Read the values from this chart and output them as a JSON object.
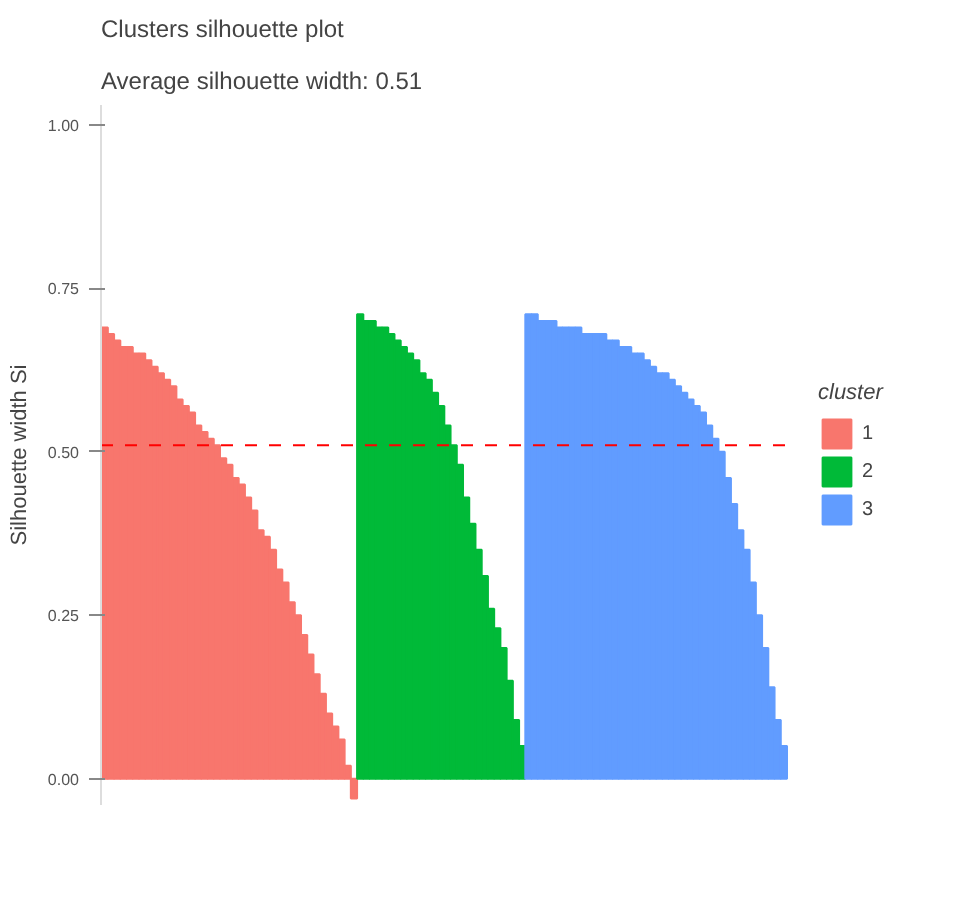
{
  "chart_data": {
    "type": "bar",
    "title": "Clusters silhouette plot",
    "subtitle": " Average silhouette width: 0.51",
    "ylabel": "Silhouette width Si",
    "legend_title": "cluster",
    "legend": "right",
    "grid": false,
    "tick_labels": "y",
    "ylim": [
      -0.04,
      1.03
    ],
    "yticks": [
      {
        "value": 0,
        "label": "0.00"
      },
      {
        "value": 0.25,
        "label": "0.25"
      },
      {
        "value": 0.5,
        "label": "0.50"
      },
      {
        "value": 0.75,
        "label": "0.75"
      },
      {
        "value": 1,
        "label": "1.00"
      }
    ],
    "ref_lines": [
      {
        "axis": "y",
        "value": 0.51,
        "label": null,
        "color": "#ff0000",
        "line_style": "dashed"
      }
    ],
    "categories": [
      null,
      null,
      null,
      null,
      null,
      null,
      null,
      null,
      null,
      null,
      null,
      null,
      null,
      null,
      null,
      null,
      null,
      null,
      null,
      null,
      null,
      null,
      null,
      null,
      null,
      null,
      null,
      null,
      null,
      null,
      null,
      null,
      null,
      null,
      null,
      null,
      null,
      null,
      null,
      null,
      null,
      null,
      null,
      null,
      null,
      null,
      null,
      null,
      null,
      null,
      null,
      null,
      null,
      null,
      null,
      null,
      null,
      null,
      null,
      null,
      null,
      null,
      null,
      null,
      null,
      null,
      null,
      null,
      null,
      null,
      null,
      null,
      null,
      null,
      null,
      null,
      null,
      null,
      null,
      null,
      null,
      null,
      null,
      null,
      null,
      null,
      null,
      null,
      null,
      null,
      null,
      null,
      null,
      null,
      null,
      null,
      null,
      null,
      null,
      null,
      null,
      null,
      null,
      null,
      null,
      null,
      null,
      null,
      null,
      null
    ],
    "series": [
      {
        "name": "1",
        "color": "#f8766d",
        "values": [
          0.69,
          0.68,
          0.67,
          0.66,
          0.66,
          0.65,
          0.65,
          0.64,
          0.63,
          0.62,
          0.61,
          0.6,
          0.58,
          0.57,
          0.56,
          0.54,
          0.53,
          0.52,
          0.51,
          0.49,
          0.48,
          0.46,
          0.45,
          0.43,
          0.41,
          0.38,
          0.37,
          0.35,
          0.32,
          0.3,
          0.27,
          0.25,
          0.22,
          0.19,
          0.16,
          0.13,
          0.1,
          0.08,
          0.06,
          0.02,
          -0.03,
          null,
          null,
          null,
          null,
          null,
          null,
          null,
          null,
          null,
          null,
          null,
          null,
          null,
          null,
          null,
          null,
          null,
          null,
          null,
          null,
          null,
          null,
          null,
          null,
          null,
          null,
          null,
          null,
          null,
          null,
          null,
          null,
          null,
          null,
          null,
          null,
          null,
          null,
          null,
          null,
          null,
          null,
          null,
          null,
          null,
          null,
          null,
          null,
          null,
          null,
          null,
          null,
          null,
          null,
          null,
          null,
          null,
          null,
          null,
          null,
          null,
          null,
          null,
          null,
          null,
          null,
          null,
          null,
          null
        ]
      },
      {
        "name": "2",
        "color": "#00ba38",
        "values": [
          null,
          null,
          null,
          null,
          null,
          null,
          null,
          null,
          null,
          null,
          null,
          null,
          null,
          null,
          null,
          null,
          null,
          null,
          null,
          null,
          null,
          null,
          null,
          null,
          null,
          null,
          null,
          null,
          null,
          null,
          null,
          null,
          null,
          null,
          null,
          null,
          null,
          null,
          null,
          null,
          null,
          0.71,
          0.7,
          0.7,
          0.69,
          0.69,
          0.68,
          0.67,
          0.66,
          0.65,
          0.64,
          0.62,
          0.61,
          0.59,
          0.57,
          0.54,
          0.51,
          0.48,
          0.43,
          0.39,
          0.35,
          0.31,
          0.26,
          0.23,
          0.2,
          0.15,
          0.09,
          0.05,
          null,
          null,
          null,
          null,
          null,
          null,
          null,
          null,
          null,
          null,
          null,
          null,
          null,
          null,
          null,
          null,
          null,
          null,
          null,
          null,
          null,
          null,
          null,
          null,
          null,
          null,
          null,
          null,
          null,
          null,
          null,
          null,
          null,
          null,
          null,
          null,
          null,
          null,
          null,
          null,
          null,
          null
        ]
      },
      {
        "name": "3",
        "color": "#619cff",
        "values": [
          null,
          null,
          null,
          null,
          null,
          null,
          null,
          null,
          null,
          null,
          null,
          null,
          null,
          null,
          null,
          null,
          null,
          null,
          null,
          null,
          null,
          null,
          null,
          null,
          null,
          null,
          null,
          null,
          null,
          null,
          null,
          null,
          null,
          null,
          null,
          null,
          null,
          null,
          null,
          null,
          null,
          null,
          null,
          null,
          null,
          null,
          null,
          null,
          null,
          null,
          null,
          null,
          null,
          null,
          null,
          null,
          null,
          null,
          null,
          null,
          null,
          null,
          null,
          null,
          null,
          null,
          null,
          null,
          0.71,
          0.71,
          0.7,
          0.7,
          0.7,
          0.69,
          0.69,
          0.69,
          0.69,
          0.68,
          0.68,
          0.68,
          0.68,
          0.67,
          0.67,
          0.66,
          0.66,
          0.65,
          0.65,
          0.64,
          0.63,
          0.62,
          0.62,
          0.61,
          0.6,
          0.59,
          0.58,
          0.57,
          0.56,
          0.54,
          0.52,
          0.5,
          0.46,
          0.42,
          0.38,
          0.35,
          0.3,
          0.25,
          0.2,
          0.14,
          0.09,
          0.05
        ]
      }
    ]
  }
}
